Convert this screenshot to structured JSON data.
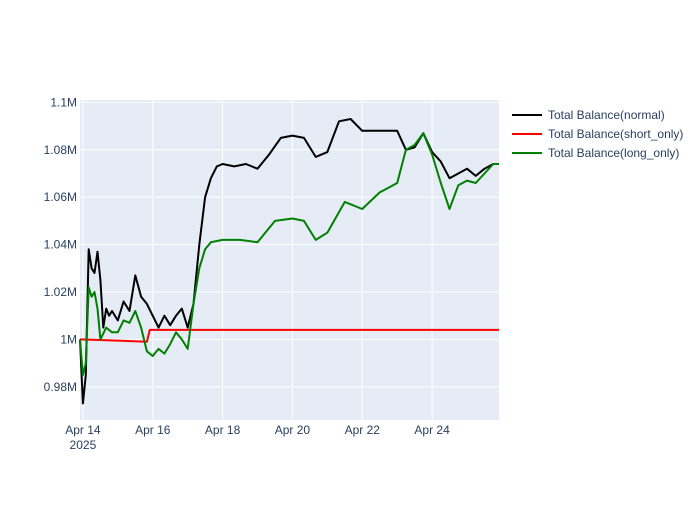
{
  "chart_data": {
    "type": "line",
    "x_axis": {
      "type": "date",
      "range": [
        "2025-04-13 22:00",
        "2025-04-25 22:00"
      ],
      "ticks": [
        {
          "date": "2025-04-14",
          "label": "Apr 14",
          "sublabel": "2025"
        },
        {
          "date": "2025-04-16",
          "label": "Apr 16"
        },
        {
          "date": "2025-04-18",
          "label": "Apr 18"
        },
        {
          "date": "2025-04-20",
          "label": "Apr 20"
        },
        {
          "date": "2025-04-22",
          "label": "Apr 22"
        },
        {
          "date": "2025-04-24",
          "label": "Apr 24"
        }
      ]
    },
    "y_axis": {
      "range": [
        966000,
        1101000
      ],
      "ticks": [
        {
          "value": 980000,
          "label": "0.98M"
        },
        {
          "value": 1000000,
          "label": "1M"
        },
        {
          "value": 1020000,
          "label": "1.02M"
        },
        {
          "value": 1040000,
          "label": "1.04M"
        },
        {
          "value": 1060000,
          "label": "1.06M"
        },
        {
          "value": 1080000,
          "label": "1.08M"
        },
        {
          "value": 1100000,
          "label": "1.1M"
        }
      ]
    },
    "grid": true,
    "legend_position": "right-top",
    "series": [
      {
        "name": "Total Balance(normal)",
        "color": "#000000",
        "points": [
          [
            "2025-04-13 22:00",
            1000000
          ],
          [
            "2025-04-14 00:00",
            973000
          ],
          [
            "2025-04-14 02:00",
            985000
          ],
          [
            "2025-04-14 04:00",
            1038000
          ],
          [
            "2025-04-14 06:00",
            1030000
          ],
          [
            "2025-04-14 08:00",
            1028000
          ],
          [
            "2025-04-14 10:00",
            1037000
          ],
          [
            "2025-04-14 12:00",
            1025000
          ],
          [
            "2025-04-14 14:00",
            1005000
          ],
          [
            "2025-04-14 16:00",
            1013000
          ],
          [
            "2025-04-14 18:00",
            1010000
          ],
          [
            "2025-04-14 20:00",
            1012000
          ],
          [
            "2025-04-15 00:00",
            1008000
          ],
          [
            "2025-04-15 04:00",
            1016000
          ],
          [
            "2025-04-15 08:00",
            1012000
          ],
          [
            "2025-04-15 12:00",
            1027000
          ],
          [
            "2025-04-15 16:00",
            1018000
          ],
          [
            "2025-04-15 20:00",
            1015000
          ],
          [
            "2025-04-16 00:00",
            1010000
          ],
          [
            "2025-04-16 04:00",
            1005000
          ],
          [
            "2025-04-16 08:00",
            1010000
          ],
          [
            "2025-04-16 12:00",
            1006000
          ],
          [
            "2025-04-16 16:00",
            1010000
          ],
          [
            "2025-04-16 20:00",
            1013000
          ],
          [
            "2025-04-17 00:00",
            1005000
          ],
          [
            "2025-04-17 04:00",
            1015000
          ],
          [
            "2025-04-17 08:00",
            1040000
          ],
          [
            "2025-04-17 12:00",
            1060000
          ],
          [
            "2025-04-17 16:00",
            1068000
          ],
          [
            "2025-04-17 20:00",
            1073000
          ],
          [
            "2025-04-18 00:00",
            1074000
          ],
          [
            "2025-04-18 08:00",
            1073000
          ],
          [
            "2025-04-18 16:00",
            1074000
          ],
          [
            "2025-04-19 00:00",
            1072000
          ],
          [
            "2025-04-19 08:00",
            1078000
          ],
          [
            "2025-04-19 16:00",
            1085000
          ],
          [
            "2025-04-20 00:00",
            1086000
          ],
          [
            "2025-04-20 08:00",
            1085000
          ],
          [
            "2025-04-20 16:00",
            1077000
          ],
          [
            "2025-04-21 00:00",
            1079000
          ],
          [
            "2025-04-21 08:00",
            1092000
          ],
          [
            "2025-04-21 16:00",
            1093000
          ],
          [
            "2025-04-22 00:00",
            1088000
          ],
          [
            "2025-04-22 12:00",
            1088000
          ],
          [
            "2025-04-23 00:00",
            1088000
          ],
          [
            "2025-04-23 06:00",
            1080000
          ],
          [
            "2025-04-23 12:00",
            1081000
          ],
          [
            "2025-04-23 18:00",
            1087000
          ],
          [
            "2025-04-24 00:00",
            1079000
          ],
          [
            "2025-04-24 06:00",
            1075000
          ],
          [
            "2025-04-24 12:00",
            1068000
          ],
          [
            "2025-04-24 18:00",
            1070000
          ],
          [
            "2025-04-25 00:00",
            1072000
          ],
          [
            "2025-04-25 06:00",
            1069000
          ],
          [
            "2025-04-25 12:00",
            1072000
          ],
          [
            "2025-04-25 18:00",
            1074000
          ],
          [
            "2025-04-25 22:00",
            1074000
          ]
        ]
      },
      {
        "name": "Total Balance(short_only)",
        "color": "#ff0000",
        "points": [
          [
            "2025-04-13 22:00",
            1000000
          ],
          [
            "2025-04-15 00:00",
            999500
          ],
          [
            "2025-04-15 20:00",
            999000
          ],
          [
            "2025-04-15 22:00",
            1004000
          ],
          [
            "2025-04-25 22:00",
            1004000
          ]
        ]
      },
      {
        "name": "Total Balance(long_only)",
        "color": "#008000",
        "points": [
          [
            "2025-04-13 22:00",
            1000000
          ],
          [
            "2025-04-14 00:00",
            985000
          ],
          [
            "2025-04-14 02:00",
            990000
          ],
          [
            "2025-04-14 04:00",
            1022000
          ],
          [
            "2025-04-14 06:00",
            1018000
          ],
          [
            "2025-04-14 08:00",
            1020000
          ],
          [
            "2025-04-14 10:00",
            1013000
          ],
          [
            "2025-04-14 12:00",
            1000000
          ],
          [
            "2025-04-14 16:00",
            1005000
          ],
          [
            "2025-04-14 20:00",
            1003000
          ],
          [
            "2025-04-15 00:00",
            1003000
          ],
          [
            "2025-04-15 04:00",
            1008000
          ],
          [
            "2025-04-15 08:00",
            1007000
          ],
          [
            "2025-04-15 12:00",
            1012000
          ],
          [
            "2025-04-15 16:00",
            1005000
          ],
          [
            "2025-04-15 20:00",
            995000
          ],
          [
            "2025-04-16 00:00",
            993000
          ],
          [
            "2025-04-16 04:00",
            996000
          ],
          [
            "2025-04-16 08:00",
            994000
          ],
          [
            "2025-04-16 12:00",
            998000
          ],
          [
            "2025-04-16 16:00",
            1003000
          ],
          [
            "2025-04-16 20:00",
            1000000
          ],
          [
            "2025-04-17 00:00",
            996000
          ],
          [
            "2025-04-17 04:00",
            1015000
          ],
          [
            "2025-04-17 08:00",
            1030000
          ],
          [
            "2025-04-17 12:00",
            1038000
          ],
          [
            "2025-04-17 16:00",
            1041000
          ],
          [
            "2025-04-18 00:00",
            1042000
          ],
          [
            "2025-04-18 12:00",
            1042000
          ],
          [
            "2025-04-19 00:00",
            1041000
          ],
          [
            "2025-04-19 12:00",
            1050000
          ],
          [
            "2025-04-20 00:00",
            1051000
          ],
          [
            "2025-04-20 08:00",
            1050000
          ],
          [
            "2025-04-20 16:00",
            1042000
          ],
          [
            "2025-04-21 00:00",
            1045000
          ],
          [
            "2025-04-21 12:00",
            1058000
          ],
          [
            "2025-04-22 00:00",
            1055000
          ],
          [
            "2025-04-22 12:00",
            1062000
          ],
          [
            "2025-04-23 00:00",
            1066000
          ],
          [
            "2025-04-23 06:00",
            1080000
          ],
          [
            "2025-04-23 12:00",
            1082000
          ],
          [
            "2025-04-23 18:00",
            1087000
          ],
          [
            "2025-04-24 00:00",
            1078000
          ],
          [
            "2025-04-24 06:00",
            1066000
          ],
          [
            "2025-04-24 12:00",
            1055000
          ],
          [
            "2025-04-24 18:00",
            1065000
          ],
          [
            "2025-04-25 00:00",
            1067000
          ],
          [
            "2025-04-25 06:00",
            1066000
          ],
          [
            "2025-04-25 12:00",
            1070000
          ],
          [
            "2025-04-25 18:00",
            1074000
          ],
          [
            "2025-04-25 22:00",
            1074000
          ]
        ]
      }
    ]
  }
}
